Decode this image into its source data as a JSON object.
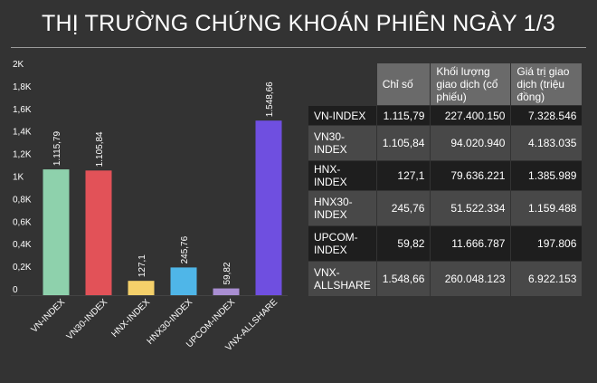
{
  "title": "THỊ TRƯỜNG CHỨNG KHOÁN PHIÊN NGÀY 1/3",
  "colors": {
    "background": "#333333",
    "header_cell": "#6a6a6a",
    "row_dark": "#1e1e1e",
    "row_light": "#484848"
  },
  "chart_data": {
    "type": "bar",
    "categories": [
      "VN-INDEX",
      "VN30-INDEX",
      "HNX-INDEX",
      "HNX30-INDEX",
      "UPCOM-INDEX",
      "VNX-ALLSHARE"
    ],
    "values": [
      1115.79,
      1105.84,
      127.1,
      245.76,
      59.82,
      1548.66
    ],
    "value_labels": [
      "1.115,79",
      "1.105,84",
      "127,1",
      "245,76",
      "59,82",
      "1.548,66"
    ],
    "colors": [
      "#8ed1ac",
      "#e25258",
      "#f5d06a",
      "#4fb6e8",
      "#a98ed2",
      "#6f4fe0"
    ],
    "yticks": [
      0,
      200,
      400,
      600,
      800,
      1000,
      1200,
      1400,
      1600,
      1800,
      2000
    ],
    "ytick_labels": [
      "0",
      "0,2K",
      "0,4K",
      "0,6K",
      "0,8K",
      "1K",
      "1,2K",
      "1,4K",
      "1,6K",
      "1,8K",
      "2K"
    ],
    "ylim": [
      0,
      2000
    ],
    "title": "",
    "xlabel": "",
    "ylabel": "",
    "grid": false,
    "legend": "none"
  },
  "table": {
    "headers": [
      "",
      "Chỉ số",
      "Khối lượng giao dịch (cổ phiếu)",
      "Giá trị giao dịch (triệu đồng)"
    ],
    "rows": [
      [
        "VN-INDEX",
        "1.115,79",
        "227.400.150",
        "7.328.546"
      ],
      [
        "VN30-INDEX",
        "1.105,84",
        "94.020.940",
        "4.183.035"
      ],
      [
        "HNX-INDEX",
        "127,1",
        "79.636.221",
        "1.385.989"
      ],
      [
        "HNX30-INDEX",
        "245,76",
        "51.522.334",
        "1.159.488"
      ],
      [
        "UPCOM-INDEX",
        "59,82",
        "11.666.787",
        "197.806"
      ],
      [
        "VNX-ALLSHARE",
        "1.548,66",
        "260.048.123",
        "6.922.153"
      ]
    ]
  }
}
